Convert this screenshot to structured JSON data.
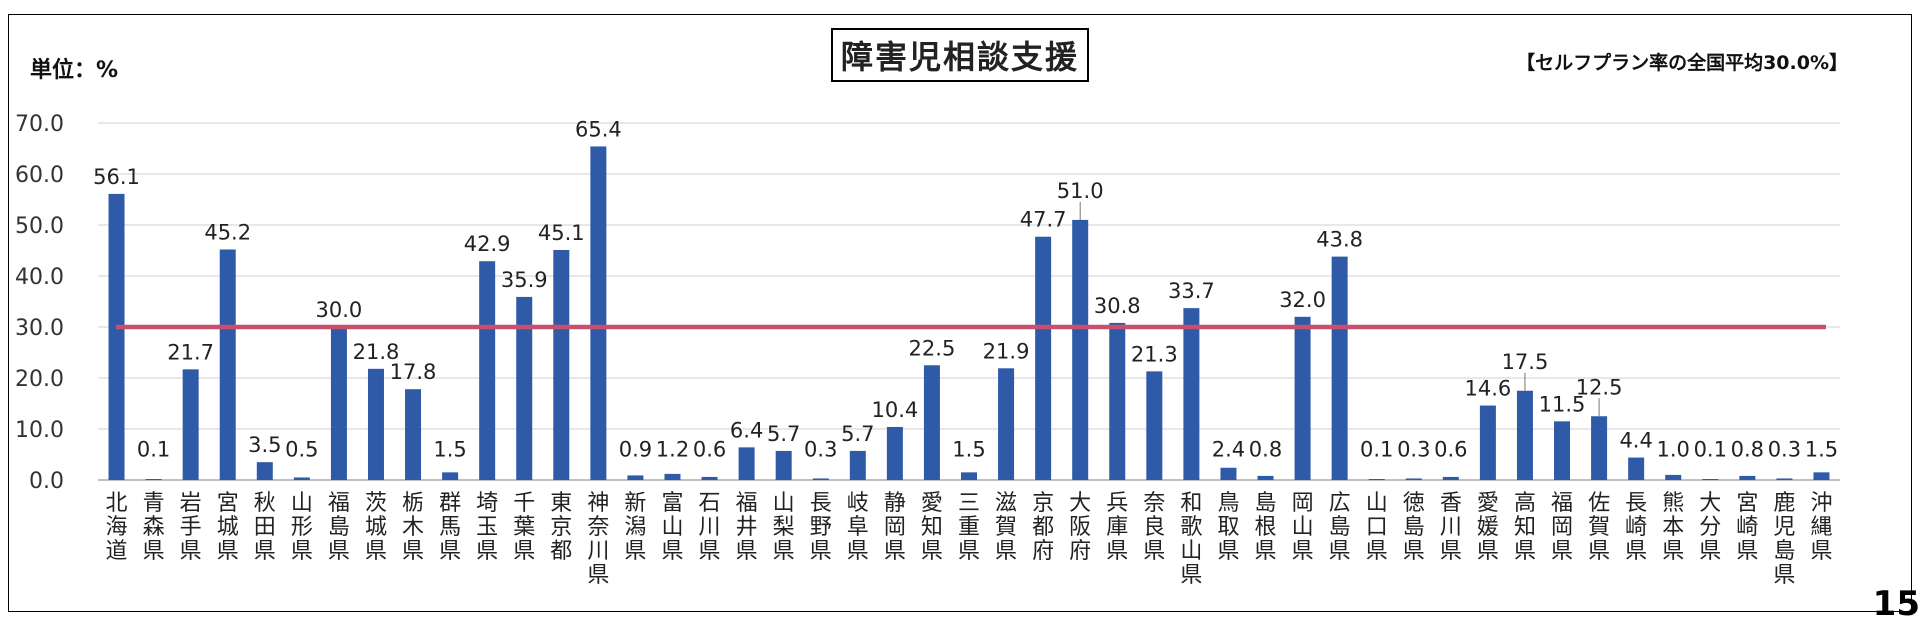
{
  "page": {
    "unit_label": "単位：%",
    "note": "【セルフプラン率の全国平均30.0%】",
    "page_number": "15"
  },
  "chart_data": {
    "type": "bar",
    "title": "障害児相談支援",
    "ylabel": "",
    "xlabel": "",
    "ylim": [
      0,
      70
    ],
    "yticks": [
      "0.0",
      "10.0",
      "20.0",
      "30.0",
      "40.0",
      "50.0",
      "60.0",
      "70.0"
    ],
    "grid": true,
    "bar_color": "#2f5aa8",
    "reference_line": {
      "value": 30.0,
      "color": "#c8506f"
    },
    "categories": [
      "北海道",
      "青森県",
      "岩手県",
      "宮城県",
      "秋田県",
      "山形県",
      "福島県",
      "茨城県",
      "栃木県",
      "群馬県",
      "埼玉県",
      "千葉県",
      "東京都",
      "神奈川県",
      "新潟県",
      "富山県",
      "石川県",
      "福井県",
      "山梨県",
      "長野県",
      "岐阜県",
      "静岡県",
      "愛知県",
      "三重県",
      "滋賀県",
      "京都府",
      "大阪府",
      "兵庫県",
      "奈良県",
      "和歌山県",
      "鳥取県",
      "島根県",
      "岡山県",
      "広島県",
      "山口県",
      "徳島県",
      "香川県",
      "愛媛県",
      "高知県",
      "福岡県",
      "佐賀県",
      "長崎県",
      "熊本県",
      "大分県",
      "宮崎県",
      "鹿児島県",
      "沖縄県"
    ],
    "values": [
      56.1,
      0.1,
      21.7,
      45.2,
      3.5,
      0.5,
      30.0,
      21.8,
      17.8,
      1.5,
      42.9,
      35.9,
      45.1,
      65.4,
      0.9,
      1.2,
      0.6,
      6.4,
      5.7,
      0.3,
      5.7,
      10.4,
      22.5,
      1.5,
      21.9,
      47.7,
      51.0,
      30.8,
      21.3,
      33.7,
      2.4,
      0.8,
      32.0,
      43.8,
      0.1,
      0.3,
      0.6,
      14.6,
      17.5,
      11.5,
      12.5,
      4.4,
      1.0,
      0.1,
      0.8,
      0.3,
      1.5
    ],
    "data_labels": [
      "56.1",
      "0.1",
      "21.7",
      "45.2",
      "3.5",
      "0.5",
      "30.0",
      "21.8",
      "17.8",
      "1.5",
      "42.9",
      "35.9",
      "45.1",
      "65.4",
      "0.9",
      "1.2",
      "0.6",
      "6.4",
      "5.7",
      "0.3",
      "5.7",
      "10.4",
      "22.5",
      "1.5",
      "21.9",
      "47.7",
      "51.0",
      "30.8",
      "21.3",
      "33.7",
      "2.4",
      "0.8",
      "32.0",
      "43.8",
      "0.1",
      "0.3",
      "0.6",
      "14.6",
      "17.5",
      "11.5",
      "12.5",
      "4.4",
      "1.0",
      "0.1",
      "0.8",
      "0.3",
      "1.5"
    ]
  }
}
